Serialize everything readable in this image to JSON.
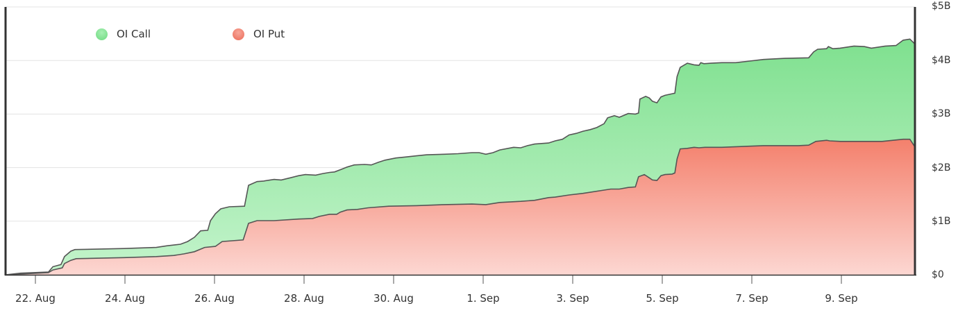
{
  "chart_data": {
    "type": "area",
    "stacked": true,
    "title": "",
    "xlabel": "",
    "ylabel": "",
    "ylim": [
      0,
      5000000000
    ],
    "y_tick_labels": [
      "$0",
      "$1B",
      "$2B",
      "$3B",
      "$4B",
      "$5B"
    ],
    "y_tick_values_B": [
      0,
      1,
      2,
      3,
      4,
      5
    ],
    "x_tick_labels": [
      "22. Aug",
      "24. Aug",
      "26. Aug",
      "28. Aug",
      "30. Aug",
      "1. Sep",
      "3. Sep",
      "5. Sep",
      "7. Sep",
      "9. Sep"
    ],
    "x_tick_day_offsets": [
      0,
      2,
      4,
      6,
      8,
      10,
      12,
      14,
      16,
      18
    ],
    "x_axis_note": "day offset 0 = 22 Aug",
    "grid": true,
    "legend_position": "top-left",
    "legend": [
      {
        "name": "OI Call",
        "color": "#7fe08f"
      },
      {
        "name": "OI Put",
        "color": "#ef7c6a"
      }
    ],
    "series_units": "billions USD, stacked (top = OI Put + OI Call)",
    "series": [
      {
        "name": "OI Put",
        "color_top": "#f4806c",
        "color_bottom": "#fcd7d2",
        "points": [
          [
            -0.66,
            0.0
          ],
          [
            0.29,
            0.04
          ],
          [
            0.39,
            0.09
          ],
          [
            0.6,
            0.13
          ],
          [
            0.65,
            0.21
          ],
          [
            0.79,
            0.27
          ],
          [
            0.91,
            0.3
          ],
          [
            1.98,
            0.32
          ],
          [
            2.7,
            0.34
          ],
          [
            3.09,
            0.36
          ],
          [
            3.32,
            0.39
          ],
          [
            3.55,
            0.43
          ],
          [
            3.78,
            0.51
          ],
          [
            4.02,
            0.53
          ],
          [
            4.17,
            0.62
          ],
          [
            4.64,
            0.65
          ],
          [
            4.76,
            0.96
          ],
          [
            4.95,
            1.01
          ],
          [
            5.33,
            1.01
          ],
          [
            5.88,
            1.04
          ],
          [
            6.19,
            1.05
          ],
          [
            6.34,
            1.09
          ],
          [
            6.57,
            1.13
          ],
          [
            6.73,
            1.13
          ],
          [
            6.81,
            1.17
          ],
          [
            6.96,
            1.21
          ],
          [
            7.19,
            1.22
          ],
          [
            7.43,
            1.25
          ],
          [
            7.89,
            1.28
          ],
          [
            8.51,
            1.29
          ],
          [
            9.13,
            1.31
          ],
          [
            9.75,
            1.32
          ],
          [
            10.06,
            1.31
          ],
          [
            10.37,
            1.35
          ],
          [
            10.84,
            1.37
          ],
          [
            11.15,
            1.39
          ],
          [
            11.46,
            1.44
          ],
          [
            11.61,
            1.45
          ],
          [
            11.92,
            1.49
          ],
          [
            12.23,
            1.52
          ],
          [
            12.7,
            1.58
          ],
          [
            12.85,
            1.6
          ],
          [
            13.04,
            1.6
          ],
          [
            13.24,
            1.63
          ],
          [
            13.4,
            1.64
          ],
          [
            13.47,
            1.83
          ],
          [
            13.6,
            1.87
          ],
          [
            13.71,
            1.81
          ],
          [
            13.78,
            1.77
          ],
          [
            13.88,
            1.76
          ],
          [
            13.97,
            1.85
          ],
          [
            14.06,
            1.87
          ],
          [
            14.22,
            1.88
          ],
          [
            14.28,
            1.9
          ],
          [
            14.33,
            2.16
          ],
          [
            14.4,
            2.35
          ],
          [
            14.56,
            2.36
          ],
          [
            14.71,
            2.38
          ],
          [
            14.82,
            2.37
          ],
          [
            14.95,
            2.38
          ],
          [
            15.33,
            2.38
          ],
          [
            15.95,
            2.4
          ],
          [
            16.26,
            2.41
          ],
          [
            17.04,
            2.41
          ],
          [
            17.27,
            2.42
          ],
          [
            17.43,
            2.49
          ],
          [
            17.67,
            2.51
          ],
          [
            17.74,
            2.5
          ],
          [
            17.98,
            2.49
          ],
          [
            18.45,
            2.49
          ],
          [
            18.91,
            2.49
          ],
          [
            19.38,
            2.53
          ],
          [
            19.53,
            2.53
          ],
          [
            19.64,
            2.39
          ]
        ]
      },
      {
        "name": "OI Call",
        "color_top": "#7fe08f",
        "color_bottom": "#c4f4cc",
        "stacked_top_points": [
          [
            -0.66,
            0.0
          ],
          [
            -0.33,
            0.03
          ],
          [
            0.29,
            0.05
          ],
          [
            0.39,
            0.15
          ],
          [
            0.57,
            0.19
          ],
          [
            0.65,
            0.34
          ],
          [
            0.79,
            0.44
          ],
          [
            0.88,
            0.47
          ],
          [
            1.98,
            0.49
          ],
          [
            2.7,
            0.51
          ],
          [
            2.93,
            0.54
          ],
          [
            3.24,
            0.57
          ],
          [
            3.4,
            0.62
          ],
          [
            3.55,
            0.7
          ],
          [
            3.69,
            0.82
          ],
          [
            3.85,
            0.83
          ],
          [
            3.91,
            1.01
          ],
          [
            4.02,
            1.14
          ],
          [
            4.14,
            1.23
          ],
          [
            4.33,
            1.27
          ],
          [
            4.67,
            1.28
          ],
          [
            4.76,
            1.67
          ],
          [
            4.95,
            1.74
          ],
          [
            5.1,
            1.75
          ],
          [
            5.33,
            1.78
          ],
          [
            5.49,
            1.77
          ],
          [
            5.69,
            1.81
          ],
          [
            5.88,
            1.85
          ],
          [
            6.03,
            1.87
          ],
          [
            6.26,
            1.86
          ],
          [
            6.42,
            1.89
          ],
          [
            6.57,
            1.91
          ],
          [
            6.68,
            1.92
          ],
          [
            6.84,
            1.97
          ],
          [
            6.96,
            2.01
          ],
          [
            7.12,
            2.05
          ],
          [
            7.35,
            2.06
          ],
          [
            7.5,
            2.05
          ],
          [
            7.66,
            2.1
          ],
          [
            7.81,
            2.14
          ],
          [
            8.05,
            2.18
          ],
          [
            8.28,
            2.2
          ],
          [
            8.51,
            2.22
          ],
          [
            8.74,
            2.24
          ],
          [
            9.13,
            2.25
          ],
          [
            9.44,
            2.26
          ],
          [
            9.75,
            2.28
          ],
          [
            9.91,
            2.28
          ],
          [
            10.06,
            2.25
          ],
          [
            10.22,
            2.28
          ],
          [
            10.37,
            2.33
          ],
          [
            10.68,
            2.38
          ],
          [
            10.84,
            2.37
          ],
          [
            10.99,
            2.41
          ],
          [
            11.15,
            2.44
          ],
          [
            11.46,
            2.46
          ],
          [
            11.61,
            2.5
          ],
          [
            11.77,
            2.53
          ],
          [
            11.92,
            2.61
          ],
          [
            12.08,
            2.64
          ],
          [
            12.23,
            2.68
          ],
          [
            12.39,
            2.71
          ],
          [
            12.54,
            2.75
          ],
          [
            12.7,
            2.82
          ],
          [
            12.78,
            2.93
          ],
          [
            12.93,
            2.97
          ],
          [
            13.04,
            2.94
          ],
          [
            13.24,
            3.01
          ],
          [
            13.4,
            3.0
          ],
          [
            13.47,
            3.02
          ],
          [
            13.5,
            3.28
          ],
          [
            13.63,
            3.33
          ],
          [
            13.71,
            3.3
          ],
          [
            13.78,
            3.24
          ],
          [
            13.88,
            3.21
          ],
          [
            13.97,
            3.32
          ],
          [
            14.06,
            3.35
          ],
          [
            14.22,
            3.38
          ],
          [
            14.28,
            3.39
          ],
          [
            14.33,
            3.7
          ],
          [
            14.4,
            3.87
          ],
          [
            14.56,
            3.95
          ],
          [
            14.71,
            3.92
          ],
          [
            14.82,
            3.91
          ],
          [
            14.86,
            3.96
          ],
          [
            14.93,
            3.94
          ],
          [
            15.09,
            3.95
          ],
          [
            15.33,
            3.96
          ],
          [
            15.64,
            3.96
          ],
          [
            15.95,
            3.99
          ],
          [
            16.26,
            4.02
          ],
          [
            16.74,
            4.04
          ],
          [
            17.27,
            4.05
          ],
          [
            17.38,
            4.16
          ],
          [
            17.47,
            4.21
          ],
          [
            17.67,
            4.22
          ],
          [
            17.71,
            4.26
          ],
          [
            17.81,
            4.22
          ],
          [
            17.97,
            4.23
          ],
          [
            18.28,
            4.27
          ],
          [
            18.51,
            4.26
          ],
          [
            18.67,
            4.23
          ],
          [
            18.98,
            4.27
          ],
          [
            19.22,
            4.28
          ],
          [
            19.38,
            4.38
          ],
          [
            19.53,
            4.4
          ],
          [
            19.64,
            4.31
          ]
        ]
      }
    ]
  }
}
